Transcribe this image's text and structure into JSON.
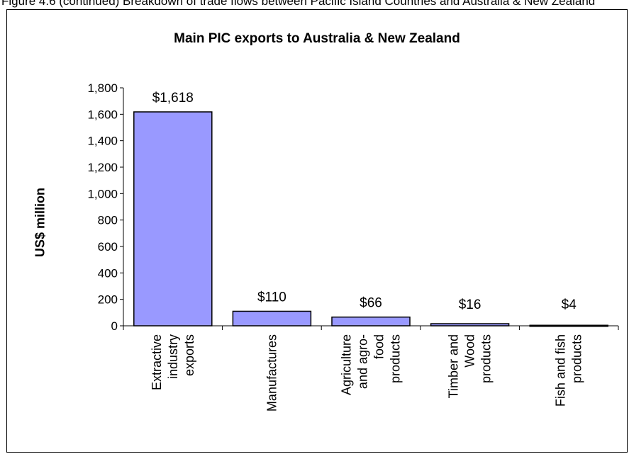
{
  "top_caption": "Figure 4.6 (continued) Breakdown of trade flows between Pacific Island Countries and Australia & New Zealand",
  "chart_data": {
    "type": "bar",
    "title": "Main PIC exports to Australia & New Zealand",
    "xlabel": "",
    "ylabel": "US$ million",
    "ylim": [
      0,
      1800
    ],
    "y_ticks": [
      0,
      200,
      400,
      600,
      800,
      1000,
      1200,
      1400,
      1600,
      1800
    ],
    "y_tick_labels": [
      "0",
      "200",
      "400",
      "600",
      "800",
      "1,000",
      "1,200",
      "1,400",
      "1,600",
      "1,800"
    ],
    "categories": [
      [
        "Extractive",
        "industry",
        "exports"
      ],
      [
        "Manufactures"
      ],
      [
        "Agriculture",
        "and agro-",
        "food",
        "products"
      ],
      [
        "Timber and",
        "Wood",
        "products"
      ],
      [
        "Fish and fish",
        "products"
      ]
    ],
    "values": [
      1618,
      110,
      66,
      16,
      4
    ],
    "data_labels": [
      "$1,618",
      "$110",
      "$66",
      "$16",
      "$4"
    ],
    "bar_color": "#9999ff",
    "bar_stroke": "#000000",
    "grid": false,
    "legend": "none"
  }
}
